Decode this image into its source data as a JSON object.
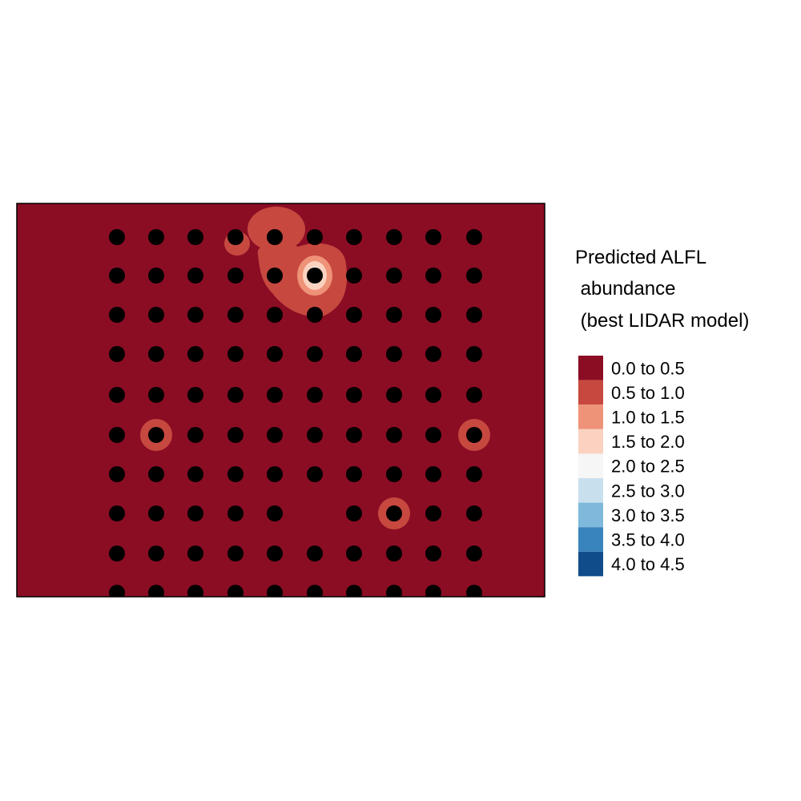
{
  "legend": {
    "title_lines": [
      "Predicted ALFL",
      " abundance",
      " (best LIDAR model)"
    ],
    "classes": [
      {
        "label": "0.0 to 0.5",
        "color": "#8b0d24"
      },
      {
        "label": "0.5 to 1.0",
        "color": "#c7483f"
      },
      {
        "label": "1.0 to 1.5",
        "color": "#ee9278"
      },
      {
        "label": "1.5 to 2.0",
        "color": "#fbd2bf"
      },
      {
        "label": "2.0 to 2.5",
        "color": "#f6f6f6"
      },
      {
        "label": "2.5 to 3.0",
        "color": "#c8e0ee"
      },
      {
        "label": "3.0 to 3.5",
        "color": "#7eb8da"
      },
      {
        "label": "3.5 to 4.0",
        "color": "#3a84bd"
      },
      {
        "label": "4.0 to 4.5",
        "color": "#104c8a"
      }
    ]
  },
  "map": {
    "background_class": "0.0 to 0.5",
    "point_color": "#000000",
    "grid_columns": 10,
    "grid_rows": 10,
    "missing_points": [
      [
        5,
        7
      ]
    ],
    "hotspots": [
      {
        "col": 4,
        "row": 0,
        "peak_class": "0.5 to 1.0"
      },
      {
        "col": 3,
        "row": 0,
        "peak_class": "1.0 to 1.5"
      },
      {
        "col": 5,
        "row": 1,
        "peak_class": "4.0 to 4.5"
      },
      {
        "col": 1,
        "row": 5,
        "peak_class": "1.0 to 1.5"
      },
      {
        "col": 9,
        "row": 5,
        "peak_class": "1.0 to 1.5"
      },
      {
        "col": 7,
        "row": 7,
        "peak_class": "1.0 to 1.5"
      }
    ]
  }
}
